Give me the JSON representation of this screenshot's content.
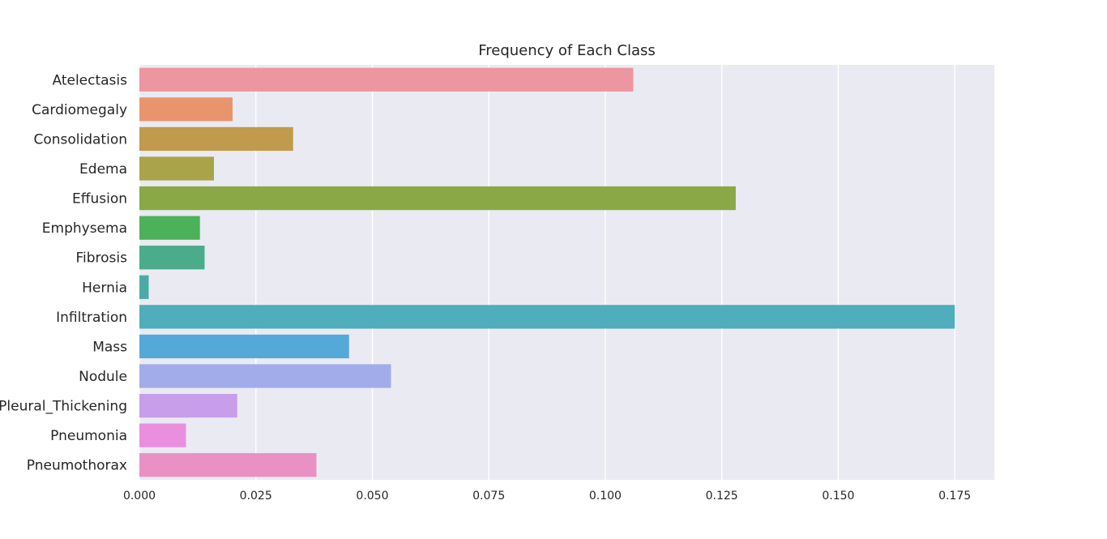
{
  "chart_data": {
    "type": "bar",
    "orientation": "horizontal",
    "title": "Frequency of Each Class",
    "xlabel": "",
    "ylabel": "",
    "categories": [
      "Atelectasis",
      "Cardiomegaly",
      "Consolidation",
      "Edema",
      "Effusion",
      "Emphysema",
      "Fibrosis",
      "Hernia",
      "Infiltration",
      "Mass",
      "Nodule",
      "Pleural_Thickening",
      "Pneumonia",
      "Pneumothorax"
    ],
    "values": [
      0.106,
      0.02,
      0.033,
      0.016,
      0.128,
      0.013,
      0.014,
      0.002,
      0.175,
      0.045,
      0.054,
      0.021,
      0.01,
      0.038
    ],
    "colors": [
      "#ec96a0",
      "#e8956f",
      "#c09a4d",
      "#a9a44a",
      "#8aa946",
      "#4cb25a",
      "#4bab8a",
      "#4aaba4",
      "#4fadbc",
      "#54a9d8",
      "#a3aceb",
      "#c89eea",
      "#ea8ee0",
      "#e991c4"
    ],
    "x_ticks": [
      "0.000",
      "0.025",
      "0.050",
      "0.075",
      "0.100",
      "0.125",
      "0.150",
      "0.175"
    ],
    "xlim": [
      0,
      0.1835
    ],
    "grid": true,
    "background": "#eaeaf2"
  }
}
